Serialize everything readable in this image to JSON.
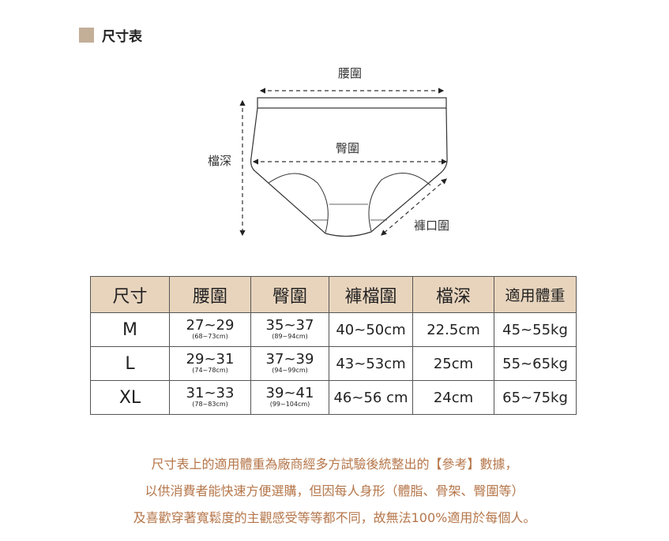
{
  "header": {
    "title": "尺寸表",
    "marker_color": "#c3ae98"
  },
  "diagram": {
    "waist": "腰圍",
    "hip": "臀圍",
    "rise": "檔深",
    "leg_opening": "褲口圍"
  },
  "table": {
    "header_color": "#e8d4bd",
    "columns": [
      "尺寸",
      "腰圍",
      "臀圍",
      "褲檔圍",
      "檔深",
      "適用體重"
    ],
    "rows": [
      {
        "size": "M",
        "waist": "27~29",
        "waist_cm": "(68~73cm)",
        "hip": "35~37",
        "hip_cm": "(89~94cm)",
        "crotch": "40~50cm",
        "rise": "22.5cm",
        "weight": "45~55kg"
      },
      {
        "size": "L",
        "waist": "29~31",
        "waist_cm": "(74~78cm)",
        "hip": "37~39",
        "hip_cm": "(94~99cm)",
        "crotch": "43~53cm",
        "rise": "25cm",
        "weight": "55~65kg"
      },
      {
        "size": "XL",
        "waist": "31~33",
        "waist_cm": "(78~83cm)",
        "hip": "39~41",
        "hip_cm": "(99~104cm)",
        "crotch": "46~56 cm",
        "rise": "24cm",
        "weight": "65~75kg"
      }
    ]
  },
  "notes": {
    "color": "#b5764a",
    "lines": [
      "尺寸表上的適用體重為廠商經多方試驗後統整出的【參考】數據，",
      "以供消費者能快速方便選購，但因每人身形（體脂、骨架、臀圍等）",
      "及喜歡穿著寬鬆度的主觀感受等等都不同，故無法100%適用於每個人。"
    ]
  }
}
